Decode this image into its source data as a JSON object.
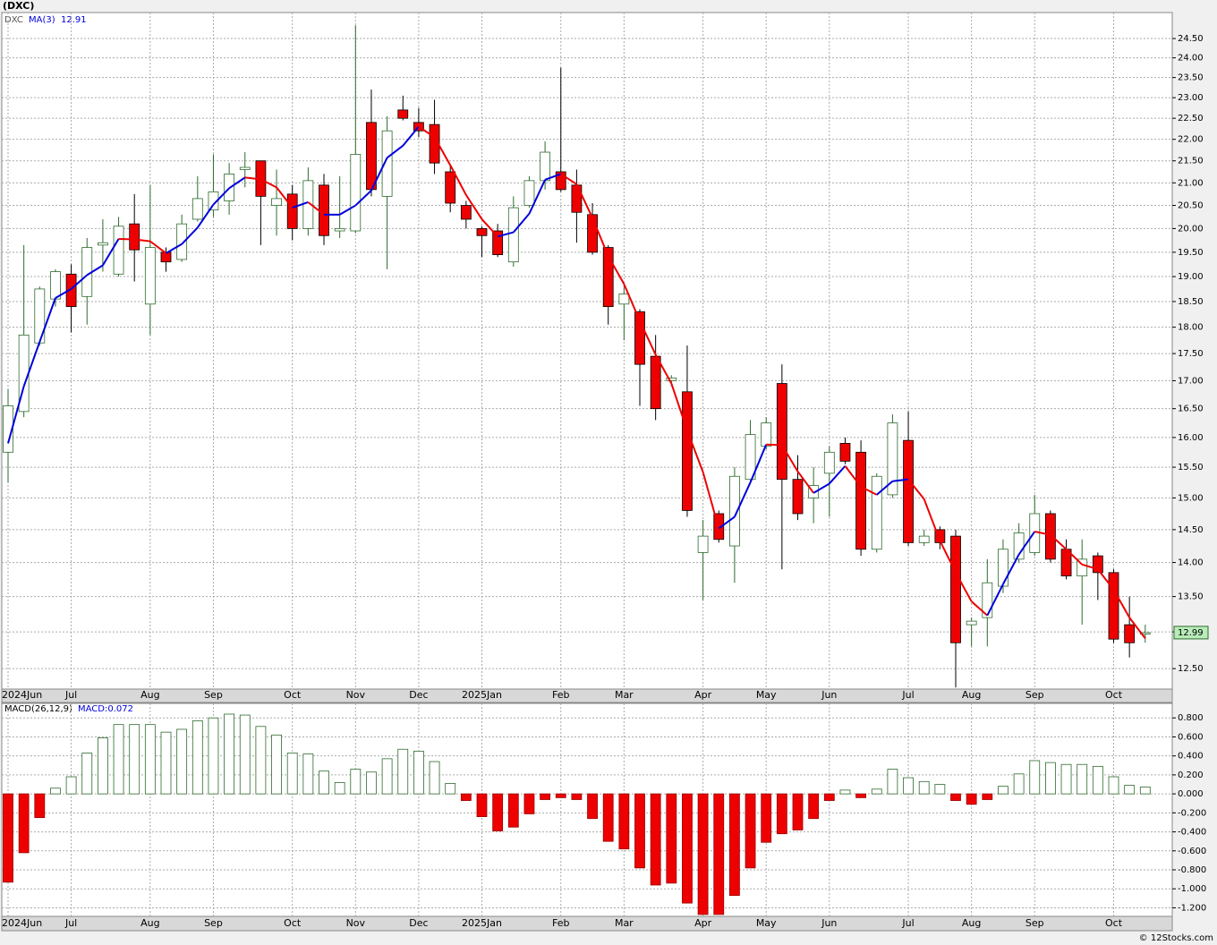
{
  "footer": "© 12Stocks.com",
  "chart_data": [
    {
      "type": "candlestick",
      "title": "(DXC)",
      "symbol": "DXC",
      "log": true,
      "grid": true,
      "categories": [
        "2024Jun",
        null,
        null,
        null,
        "Jul",
        null,
        null,
        null,
        null,
        "Aug",
        null,
        null,
        null,
        "Sep",
        null,
        null,
        null,
        null,
        "Oct",
        null,
        null,
        null,
        "Nov",
        null,
        null,
        null,
        "Dec",
        null,
        null,
        null,
        "2025Jan",
        null,
        null,
        null,
        null,
        "Feb",
        null,
        null,
        null,
        "Mar",
        null,
        null,
        null,
        null,
        "Apr",
        null,
        null,
        null,
        "May",
        null,
        null,
        null,
        "Jun",
        null,
        null,
        null,
        null,
        "Jul",
        null,
        null,
        null,
        "Aug",
        null,
        null,
        null,
        "Sep",
        null,
        null,
        null,
        null,
        "Oct",
        null,
        null
      ],
      "open": [
        15.75,
        16.45,
        17.7,
        18.55,
        19.05,
        18.6,
        19.65,
        19.05,
        20.1,
        18.45,
        19.5,
        19.35,
        20.2,
        20.4,
        20.6,
        21.3,
        21.5,
        20.5,
        20.75,
        20.0,
        20.95,
        19.95,
        19.95,
        22.4,
        20.7,
        22.7,
        22.4,
        22.35,
        21.25,
        20.5,
        20.0,
        19.95,
        19.3,
        20.5,
        21.05,
        21.25,
        20.95,
        20.3,
        19.6,
        18.45,
        18.3,
        17.45,
        17.0,
        16.8,
        14.15,
        14.75,
        14.25,
        15.3,
        15.85,
        16.95,
        15.3,
        15.0,
        15.4,
        15.9,
        15.75,
        14.2,
        15.05,
        15.95,
        14.3,
        14.5,
        14.4,
        13.1,
        13.2,
        13.65,
        14.05,
        14.15,
        14.75,
        14.2,
        13.8,
        14.1,
        13.85,
        13.1,
        12.97
      ],
      "high": [
        16.85,
        19.65,
        18.8,
        19.15,
        19.25,
        19.8,
        20.2,
        20.25,
        20.75,
        20.95,
        19.6,
        20.3,
        21.15,
        21.65,
        21.45,
        21.7,
        21.5,
        21.3,
        20.95,
        21.35,
        21.2,
        21.15,
        24.85,
        23.2,
        22.55,
        23.05,
        22.75,
        22.95,
        21.4,
        20.6,
        20.05,
        20.1,
        20.7,
        21.15,
        21.95,
        23.75,
        21.3,
        20.55,
        19.65,
        18.85,
        18.35,
        17.85,
        17.1,
        17.65,
        14.65,
        14.8,
        15.5,
        16.3,
        16.35,
        17.3,
        15.7,
        15.5,
        15.85,
        16.0,
        15.95,
        15.4,
        16.4,
        16.45,
        14.5,
        14.55,
        14.5,
        13.2,
        14.05,
        14.35,
        14.6,
        15.05,
        14.8,
        14.35,
        14.35,
        14.15,
        13.9,
        13.5,
        13.1
      ],
      "low": [
        15.25,
        16.35,
        17.65,
        18.4,
        17.9,
        18.05,
        19.1,
        19.0,
        18.9,
        17.85,
        19.1,
        19.3,
        20.15,
        20.25,
        20.3,
        20.9,
        19.65,
        19.85,
        19.75,
        19.85,
        19.65,
        19.8,
        19.9,
        20.7,
        19.15,
        22.45,
        22.05,
        21.2,
        20.35,
        20.0,
        19.4,
        19.4,
        19.2,
        20.45,
        20.85,
        20.8,
        19.7,
        19.45,
        18.05,
        17.75,
        16.55,
        16.3,
        16.9,
        14.7,
        13.45,
        14.3,
        13.7,
        15.25,
        15.8,
        13.9,
        14.65,
        14.6,
        14.7,
        15.55,
        14.1,
        14.15,
        15.0,
        14.25,
        14.25,
        14.2,
        12.25,
        12.8,
        12.8,
        13.55,
        14.0,
        14.1,
        14.0,
        13.75,
        13.1,
        13.45,
        12.85,
        12.65,
        12.85
      ],
      "close": [
        16.55,
        17.85,
        18.75,
        19.1,
        18.4,
        19.6,
        19.7,
        20.05,
        19.55,
        19.6,
        19.3,
        20.1,
        20.65,
        20.8,
        21.2,
        21.35,
        20.7,
        20.65,
        20.0,
        21.05,
        19.85,
        20.0,
        21.65,
        20.85,
        22.2,
        22.5,
        22.2,
        21.45,
        20.55,
        20.2,
        19.85,
        19.45,
        20.45,
        21.05,
        21.7,
        20.85,
        20.35,
        19.5,
        18.4,
        18.65,
        17.3,
        16.5,
        17.05,
        14.8,
        14.4,
        14.35,
        15.35,
        16.05,
        16.25,
        15.3,
        14.75,
        15.2,
        15.75,
        15.6,
        14.2,
        15.35,
        16.25,
        14.3,
        14.4,
        14.3,
        12.85,
        13.15,
        13.7,
        14.2,
        14.45,
        14.75,
        14.05,
        13.8,
        14.05,
        13.85,
        12.9,
        12.85,
        12.99
      ],
      "up_color": "#2e6b2e",
      "down_color": "#ee0000",
      "last_color": "#b8ecb8",
      "ma": {
        "name": "MA(3)",
        "up_color": "#0000dd",
        "down_color": "#ee0000",
        "values": [
          15.9,
          16.9,
          17.72,
          18.57,
          18.75,
          19.03,
          19.23,
          19.78,
          19.77,
          19.73,
          19.48,
          19.67,
          20.02,
          20.52,
          20.88,
          21.12,
          21.08,
          20.9,
          20.45,
          20.57,
          20.3,
          20.3,
          20.5,
          20.83,
          21.57,
          21.85,
          22.3,
          22.05,
          21.4,
          20.73,
          20.2,
          19.83,
          19.92,
          20.32,
          21.07,
          21.2,
          20.97,
          20.23,
          19.42,
          18.85,
          18.12,
          17.48,
          16.95,
          16.12,
          15.42,
          14.52,
          14.7,
          15.25,
          15.88,
          15.87,
          15.43,
          15.08,
          15.23,
          15.52,
          15.18,
          15.05,
          15.27,
          15.3,
          14.98,
          14.33,
          13.85,
          13.43,
          13.23,
          13.68,
          14.12,
          14.47,
          14.42,
          14.2,
          13.97,
          13.9,
          13.6,
          13.2,
          12.91
        ]
      },
      "ylim": [
        12.23,
        25.19
      ],
      "yticks": [
        {
          "value": 12.5,
          "label": "12.50"
        },
        {
          "value": 13,
          "label": "13.00"
        },
        {
          "value": 13.5,
          "label": "13.50"
        },
        {
          "value": 14,
          "label": "14.00"
        },
        {
          "value": 14.5,
          "label": "14.50"
        },
        {
          "value": 15,
          "label": "15.00"
        },
        {
          "value": 15.5,
          "label": "15.50"
        },
        {
          "value": 16,
          "label": "16.00"
        },
        {
          "value": 16.5,
          "label": "16.50"
        },
        {
          "value": 17,
          "label": "17.00"
        },
        {
          "value": 17.5,
          "label": "17.50"
        },
        {
          "value": 18,
          "label": "18.00"
        },
        {
          "value": 18.5,
          "label": "18.50"
        },
        {
          "value": 19,
          "label": "19.00"
        },
        {
          "value": 19.5,
          "label": "19.50"
        },
        {
          "value": 20,
          "label": "20.00"
        },
        {
          "value": 20.5,
          "label": "20.50"
        },
        {
          "value": 21,
          "label": "21.00"
        },
        {
          "value": 21.5,
          "label": "21.50"
        },
        {
          "value": 22,
          "label": "22.00"
        },
        {
          "value": 22.5,
          "label": "22.50"
        },
        {
          "value": 23,
          "label": "23.00"
        },
        {
          "value": 23.5,
          "label": "23.50"
        },
        {
          "value": 24,
          "label": "24.00"
        },
        {
          "value": 24.5,
          "label": "24.50"
        }
      ]
    },
    {
      "type": "bar",
      "title": "MACD(26,12,9)",
      "value_name": "MACD:",
      "grid": true,
      "up_color": "#2e6b2e",
      "down_color": "#ee0000",
      "values": [
        -0.93,
        -0.62,
        -0.25,
        0.06,
        0.18,
        0.43,
        0.59,
        0.73,
        0.73,
        0.73,
        0.65,
        0.68,
        0.77,
        0.8,
        0.84,
        0.83,
        0.71,
        0.62,
        0.43,
        0.42,
        0.24,
        0.12,
        0.26,
        0.23,
        0.37,
        0.47,
        0.45,
        0.34,
        0.11,
        -0.07,
        -0.24,
        -0.39,
        -0.35,
        -0.21,
        -0.06,
        -0.04,
        -0.06,
        -0.26,
        -0.5,
        -0.58,
        -0.78,
        -0.96,
        -0.94,
        -1.15,
        -1.27,
        -1.27,
        -1.07,
        -0.78,
        -0.51,
        -0.42,
        -0.38,
        -0.26,
        -0.07,
        0.04,
        -0.04,
        0.05,
        0.26,
        0.17,
        0.13,
        0.1,
        -0.07,
        -0.11,
        -0.06,
        0.08,
        0.21,
        0.35,
        0.33,
        0.31,
        0.31,
        0.29,
        0.18,
        0.09,
        0.072
      ],
      "ylim": [
        -1.29,
        0.953
      ],
      "yticks": [
        {
          "value": 0.8,
          "label": "0.800"
        },
        {
          "value": 0.6,
          "label": "0.600"
        },
        {
          "value": 0.4,
          "label": "0.400"
        },
        {
          "value": 0.2,
          "label": "0.200"
        },
        {
          "value": 0,
          "label": "0.000"
        },
        {
          "value": -0.2,
          "label": "-0.200"
        },
        {
          "value": -0.4,
          "label": "-0.400"
        },
        {
          "value": -0.6,
          "label": "-0.600"
        },
        {
          "value": -0.8,
          "label": "-0.800"
        },
        {
          "value": -1,
          "label": "-1.000"
        },
        {
          "value": -1.2,
          "label": "-1.200"
        }
      ]
    }
  ]
}
